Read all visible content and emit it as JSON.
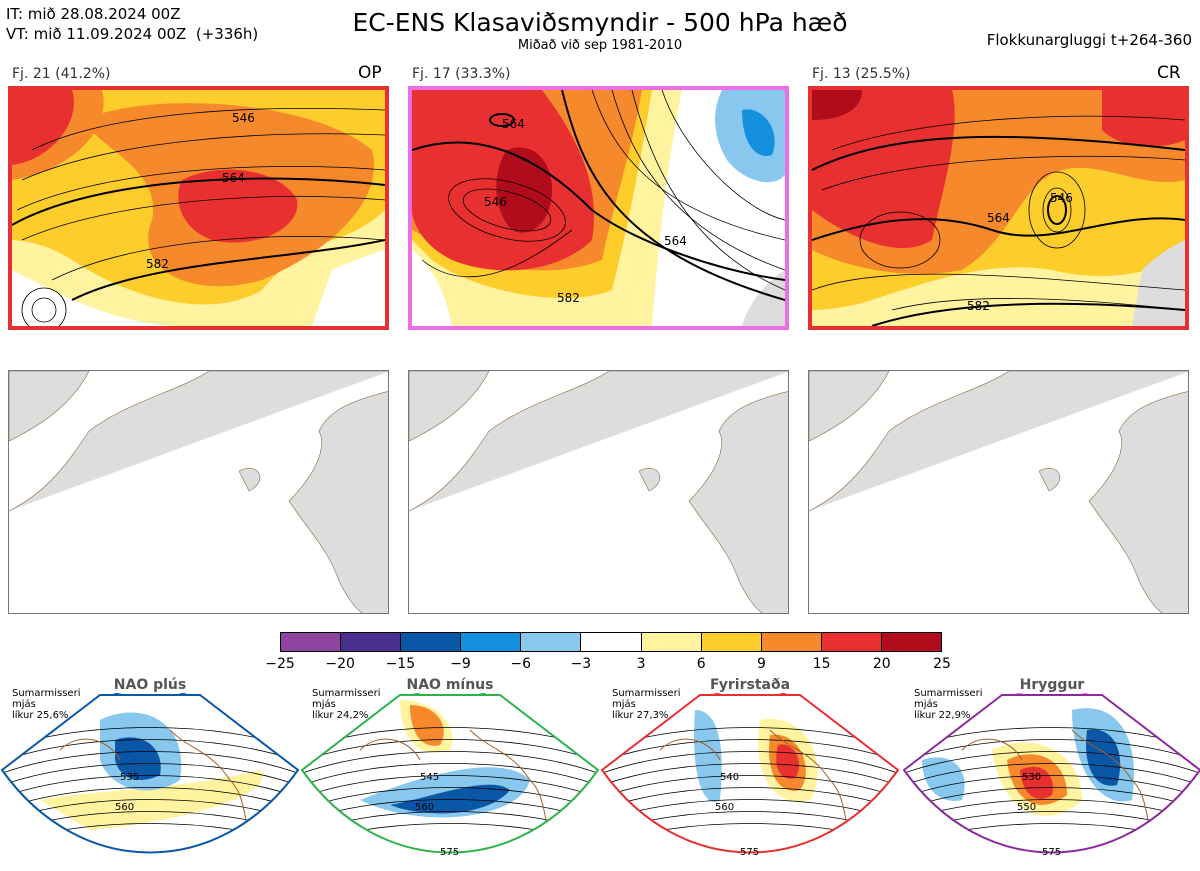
{
  "header": {
    "issue_line": "IT: mið 28.08.2024 00Z",
    "valid_line": "VT: mið 11.09.2024 00Z  (+336h)",
    "title": "EC-ENS Klasaviðsmyndir - 500 hPa hæð",
    "subtitle": "Miðað við sep 1981-2010",
    "window": "Flokkunargluggi t+264-360"
  },
  "clusters": [
    {
      "label": "Fj. 21 (41.2%)",
      "code": "OP",
      "border": "#e83030",
      "contours": [
        "546",
        "564",
        "582",
        "564",
        "546"
      ]
    },
    {
      "label": "Fj. 17 (33.3%)",
      "code": "",
      "border": "#ee6ee6",
      "contours": [
        "564",
        "546",
        "546",
        "564",
        "582",
        "546"
      ]
    },
    {
      "label": "Fj. 13 (25.5%)",
      "code": "CR",
      "border": "#e83030",
      "contours": [
        "564",
        "546",
        "564",
        "546",
        "582",
        "564"
      ]
    }
  ],
  "colorbar": {
    "colors": [
      "#8e44a0",
      "#4a2e8e",
      "#0a57a8",
      "#1490de",
      "#88c8ee",
      "#ffffff",
      "#fff3a0",
      "#fdcd2c",
      "#f5892c",
      "#e83030",
      "#b00c1c"
    ],
    "ticks": [
      "−25",
      "−20",
      "−15",
      "−9",
      "−6",
      "−3",
      "3",
      "6",
      "9",
      "15",
      "20",
      "25"
    ]
  },
  "regimes": [
    {
      "name": "NAO plús",
      "info": "Sumarmisseri\nmjás\nlíkur 25,6%",
      "dot_color": "#0a57a8",
      "border": "#0a57a8",
      "contours": [
        "535",
        "560"
      ]
    },
    {
      "name": "NAO mínus",
      "info": "Sumarmisseri\nmjás\nlíkur 24,2%",
      "dot_color": "#2db34a",
      "border": "#2db34a",
      "contours": [
        "545",
        "560",
        "575"
      ]
    },
    {
      "name": "Fyrirstaða",
      "info": "Sumarmisseri\nmjás\nlíkur 27,3%",
      "dot_color": "#e83030",
      "border": "#e83030",
      "contours": [
        "540",
        "560",
        "575"
      ]
    },
    {
      "name": "Hryggur",
      "info": "Sumarmisseri\nmjás\nlíkur 22,9%",
      "dot_color": "#ee6ee6",
      "border": "#8a2a9e",
      "contours": [
        "530",
        "550",
        "575"
      ]
    }
  ]
}
